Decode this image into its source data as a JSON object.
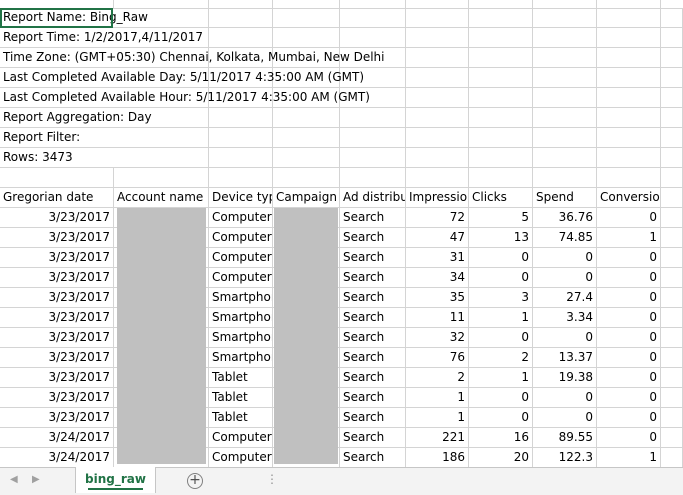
{
  "meta": {
    "report_name": "Report Name: Bing_Raw",
    "report_time": "Report Time: 1/2/2017,4/11/2017",
    "time_zone": "Time Zone: (GMT+05:30) Chennai, Kolkata, Mumbai, New Delhi",
    "last_day": "Last Completed Available Day: 5/11/2017 4:35:00 AM (GMT)",
    "last_hour": "Last Completed Available Hour: 5/11/2017 4:35:00 AM (GMT)",
    "aggregation": "Report Aggregation: Day",
    "filter": "Report Filter:",
    "rows": "Rows: 3473"
  },
  "headers": [
    "Gregorian date",
    "Account name",
    "Device type",
    "Campaign",
    "Ad distribution",
    "Impressions",
    "Clicks",
    "Spend",
    "Conversions"
  ],
  "rows": [
    [
      "3/23/2017",
      "",
      "Computer",
      "",
      "Search",
      "72",
      "5",
      "36.76",
      "0"
    ],
    [
      "3/23/2017",
      "",
      "Computer",
      "",
      "Search",
      "47",
      "13",
      "74.85",
      "1"
    ],
    [
      "3/23/2017",
      "",
      "Computer",
      "",
      "Search",
      "31",
      "0",
      "0",
      "0"
    ],
    [
      "3/23/2017",
      "",
      "Computer",
      "",
      "Search",
      "34",
      "0",
      "0",
      "0"
    ],
    [
      "3/23/2017",
      "",
      "Smartphone",
      "",
      "Search",
      "35",
      "3",
      "27.4",
      "0"
    ],
    [
      "3/23/2017",
      "",
      "Smartphone",
      "",
      "Search",
      "11",
      "1",
      "3.34",
      "0"
    ],
    [
      "3/23/2017",
      "",
      "Smartphone",
      "",
      "Search",
      "32",
      "0",
      "0",
      "0"
    ],
    [
      "3/23/2017",
      "",
      "Smartphone",
      "",
      "Search",
      "76",
      "2",
      "13.37",
      "0"
    ],
    [
      "3/23/2017",
      "",
      "Tablet",
      "",
      "Search",
      "2",
      "1",
      "19.38",
      "0"
    ],
    [
      "3/23/2017",
      "",
      "Tablet",
      "",
      "Search",
      "1",
      "0",
      "0",
      "0"
    ],
    [
      "3/23/2017",
      "",
      "Tablet",
      "",
      "Search",
      "1",
      "0",
      "0",
      "0"
    ],
    [
      "3/24/2017",
      "",
      "Computer",
      "",
      "Search",
      "221",
      "16",
      "89.55",
      "0"
    ],
    [
      "3/24/2017",
      "",
      "Computer",
      "",
      "Search",
      "186",
      "20",
      "122.3",
      "1"
    ]
  ],
  "sheet_tab": "bing_raw",
  "nav": {
    "prev": "◀",
    "next": "▶",
    "add": "+",
    "more": "⋮"
  },
  "icons": {
    "add": "plus-circle-icon",
    "prev": "scroll-left-icon",
    "next": "scroll-right-icon"
  },
  "colors": {
    "accent": "#217346",
    "grid": "#d4d4d4",
    "redaction": "#c0c0c0"
  }
}
